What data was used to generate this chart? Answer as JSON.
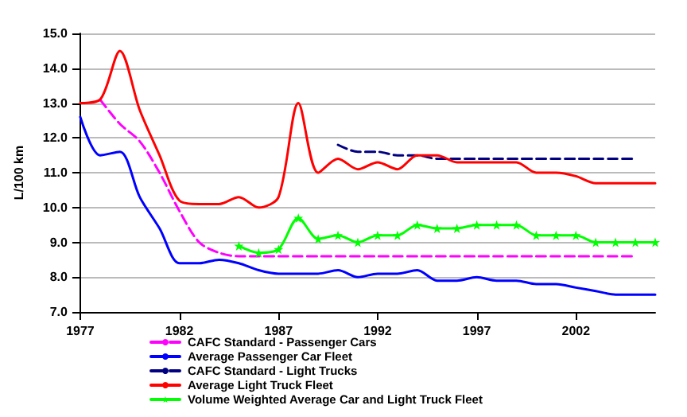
{
  "chart_data": {
    "type": "line",
    "ylabel": "L/100 km",
    "xlim": [
      1977,
      2006
    ],
    "xticks": [
      1977,
      1982,
      1987,
      1992,
      1997,
      2002
    ],
    "ylim": [
      7,
      15
    ],
    "yticks": [
      {
        "value": 7,
        "label": "7.0"
      },
      {
        "value": 8,
        "label": "8.0"
      },
      {
        "value": 9,
        "label": "9.0"
      },
      {
        "value": 10,
        "label": "10.0"
      },
      {
        "value": 11,
        "label": "11.0"
      },
      {
        "value": 12,
        "label": "12.0"
      },
      {
        "value": 13,
        "label": "13.0"
      },
      {
        "value": 14,
        "label": "14.0"
      },
      {
        "value": 15,
        "label": "15.0"
      }
    ],
    "grid": "y",
    "legend": "bottom",
    "marker": "none",
    "series": [
      {
        "name": "CAFC Standard - Passenger Cars",
        "color": "#ff00ff",
        "line_style": "dashed",
        "x": [
          1978,
          1979,
          1980,
          1981,
          1982,
          1983,
          1984,
          1985,
          1986,
          1987,
          1988,
          1989,
          1990,
          1991,
          1992,
          1993,
          1994,
          1995,
          1996,
          1997,
          1998,
          1999,
          2000,
          2001,
          2002,
          2003,
          2004,
          2005
        ],
        "values": [
          13.1,
          12.4,
          11.9,
          11.0,
          9.9,
          9.0,
          8.7,
          8.6,
          8.6,
          8.6,
          8.6,
          8.6,
          8.6,
          8.6,
          8.6,
          8.6,
          8.6,
          8.6,
          8.6,
          8.6,
          8.6,
          8.6,
          8.6,
          8.6,
          8.6,
          8.6,
          8.6,
          8.6
        ]
      },
      {
        "name": "Average Passenger Car Fleet",
        "color": "#0000ff",
        "line_style": "solid",
        "x": [
          1977,
          1978,
          1979,
          1980,
          1981,
          1982,
          1983,
          1984,
          1985,
          1986,
          1987,
          1988,
          1989,
          1990,
          1991,
          1992,
          1993,
          1994,
          1995,
          1996,
          1997,
          1998,
          1999,
          2000,
          2001,
          2002,
          2003,
          2004,
          2005,
          2006
        ],
        "values": [
          12.6,
          11.5,
          11.6,
          10.3,
          9.4,
          8.4,
          8.4,
          8.5,
          8.4,
          8.2,
          8.1,
          8.1,
          8.1,
          8.2,
          8.0,
          8.1,
          8.1,
          8.2,
          7.9,
          7.9,
          8.0,
          7.9,
          7.9,
          7.8,
          7.8,
          7.7,
          7.6,
          7.5,
          7.5,
          7.5
        ]
      },
      {
        "name": "CAFC Standard - Light Trucks",
        "color": "#000080",
        "line_style": "dashed",
        "x": [
          1990,
          1991,
          1992,
          1993,
          1994,
          1995,
          1996,
          1997,
          1998,
          1999,
          2000,
          2001,
          2002,
          2003,
          2004,
          2005
        ],
        "values": [
          11.8,
          11.6,
          11.6,
          11.5,
          11.5,
          11.4,
          11.4,
          11.4,
          11.4,
          11.4,
          11.4,
          11.4,
          11.4,
          11.4,
          11.4,
          11.4
        ]
      },
      {
        "name": "Average Light Truck Fleet",
        "color": "#ff0000",
        "line_style": "solid",
        "x": [
          1977,
          1978,
          1979,
          1980,
          1981,
          1982,
          1983,
          1984,
          1985,
          1986,
          1987,
          1988,
          1989,
          1990,
          1991,
          1992,
          1993,
          1994,
          1995,
          1996,
          1997,
          1998,
          1999,
          2000,
          2001,
          2002,
          2003,
          2004,
          2005,
          2006
        ],
        "values": [
          13.0,
          13.1,
          14.5,
          12.8,
          11.5,
          10.2,
          10.1,
          10.1,
          10.3,
          10.0,
          10.3,
          13.0,
          11.0,
          11.4,
          11.1,
          11.3,
          11.1,
          11.5,
          11.5,
          11.3,
          11.3,
          11.3,
          11.3,
          11.0,
          11.0,
          10.9,
          10.7,
          10.7,
          10.7,
          10.7
        ]
      },
      {
        "name": "Volume Weighted Average Car and Light Truck Fleet",
        "color": "#00ff00",
        "line_style": "solid",
        "marker": "star",
        "x": [
          1985,
          1986,
          1987,
          1988,
          1989,
          1990,
          1991,
          1992,
          1993,
          1994,
          1995,
          1996,
          1997,
          1998,
          1999,
          2000,
          2001,
          2002,
          2003,
          2004,
          2005,
          2006
        ],
        "values": [
          8.9,
          8.7,
          8.8,
          9.7,
          9.1,
          9.2,
          9.0,
          9.2,
          9.2,
          9.5,
          9.4,
          9.4,
          9.5,
          9.5,
          9.5,
          9.2,
          9.2,
          9.2,
          9.0,
          9.0,
          9.0,
          9.0
        ]
      }
    ]
  }
}
